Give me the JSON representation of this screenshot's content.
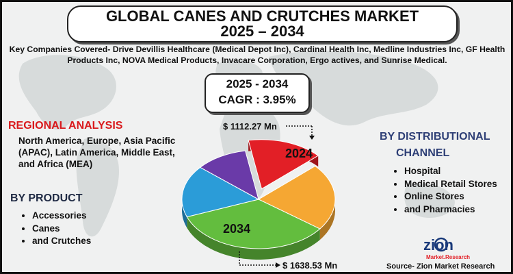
{
  "header": {
    "title_line1": "GLOBAL CANES AND CRUTCHES MARKET",
    "title_line2": "2025 – 2034",
    "subtitle": "Key Companies Covered- Drive Devillis Healthcare (Medical Depot Inc), Cardinal Health Inc, Medline Industries Inc, GF Health Products Inc, NOVA Medical Products, Invacare Corporation, Ergo actives, and Sunrise Medical."
  },
  "cagr": {
    "period": "2025 - 2034",
    "value": "CAGR : 3.95%"
  },
  "regional": {
    "title": "REGIONAL ANALYSIS",
    "text": "North America, Europe, Asia Pacific (APAC), Latin America, Middle East, and Africa (MEA)"
  },
  "product": {
    "title": "BY PRODUCT",
    "items": [
      "Accessories",
      "Canes",
      "and Crutches"
    ]
  },
  "distribution": {
    "title_line1": "BY DISTRIBUTIONAL",
    "title_line2": "CHANNEL",
    "items": [
      "Hospital",
      "Medical Retail Stores",
      "Online Stores",
      "and Pharmacies"
    ]
  },
  "source": "Source- Zion Market Research",
  "logo": {
    "name": "zion",
    "sub": "Market.Research"
  },
  "colors": {
    "regional_title": "#d9191c",
    "product_title": "#1f2a44",
    "dist_title": "#2e3f76"
  },
  "chart_data": {
    "type": "pie",
    "slice_colors": [
      "#e21f26",
      "#f5a733",
      "#63bd3e",
      "#2b9cd8",
      "#6a3aa8"
    ],
    "slice_fractions": [
      0.16,
      0.22,
      0.34,
      0.17,
      0.11
    ],
    "annotations": [
      {
        "year": "2024",
        "value": "$ 1112.27 Mn"
      },
      {
        "year": "2034",
        "value": "$ 1638.53 Mn"
      }
    ]
  }
}
